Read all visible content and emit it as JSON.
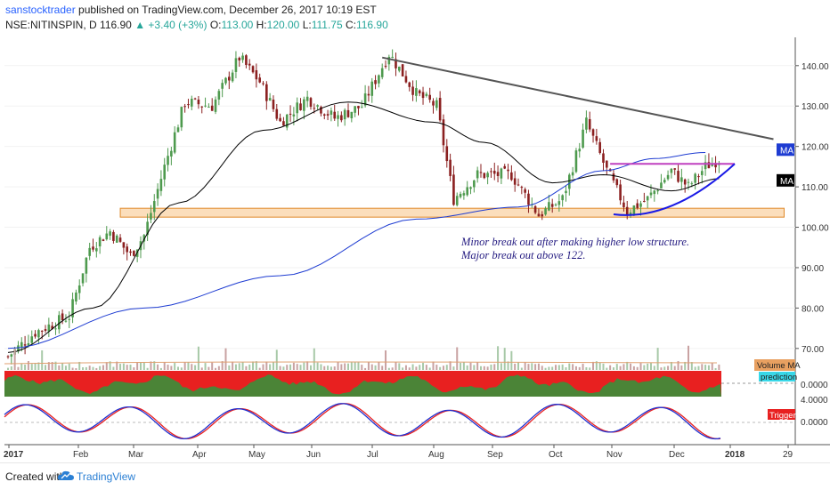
{
  "header": {
    "author": "sanstocktrader",
    "published": "published on TradingView.com, December 26, 2017 10:19 EST",
    "symbol": "NSE:NITINSPIN, D",
    "last": "116.90",
    "change": "+3.40 (+3%)",
    "open_label": "O:",
    "open": "113.00",
    "high_label": "H:",
    "high": "120.00",
    "low_label": "L:",
    "low": "111.75",
    "close_label": "C:",
    "close": "116.90",
    "up_arrow": "▲"
  },
  "footer": {
    "created_with": "Created with",
    "brand": "TradingView",
    "brand_icon": "tradingview-cloud-icon"
  },
  "colors": {
    "up": "#4e9a4e",
    "down": "#8b2020",
    "ma_black": "#000000",
    "ma_blue": "#1e3cd2",
    "trendline": "#555555",
    "support_zone": "#f9d3a6",
    "support_zone_border": "#e08a2a",
    "resistance": "#c040c0",
    "cup": "#1a1ae6",
    "annotation": "#231a80",
    "osc_red": "#e82020",
    "osc_green": "#3a8f3a",
    "stoch_red": "#e82020",
    "stoch_blue": "#2030d0"
  },
  "chart_data": {
    "type": "candlestick",
    "ylim": [
      66,
      147
    ],
    "price_ticks": [
      70,
      80,
      90,
      100,
      110,
      120,
      130,
      140
    ],
    "price_tick_labels": [
      "70.00",
      "80.00",
      "90.00",
      "100.00",
      "110.00",
      "120.00",
      "130.00",
      "140.00"
    ],
    "x_ticks": [
      "2017",
      "Feb",
      "Mar",
      "Apr",
      "May",
      "Jun",
      "Jul",
      "Aug",
      "Sep",
      "Oct",
      "Nov",
      "Dec",
      "2018",
      "29"
    ],
    "price_path": [
      [
        0,
        68
      ],
      [
        8,
        74
      ],
      [
        18,
        78
      ],
      [
        24,
        95
      ],
      [
        30,
        99
      ],
      [
        36,
        93
      ],
      [
        40,
        98
      ],
      [
        46,
        115
      ],
      [
        52,
        131
      ],
      [
        60,
        130
      ],
      [
        68,
        142
      ],
      [
        74,
        136
      ],
      [
        80,
        126
      ],
      [
        88,
        132
      ],
      [
        96,
        127
      ],
      [
        104,
        130
      ],
      [
        112,
        143
      ],
      [
        120,
        133
      ],
      [
        126,
        130
      ],
      [
        131,
        107
      ],
      [
        138,
        113
      ],
      [
        148,
        113
      ],
      [
        156,
        103
      ],
      [
        163,
        107
      ],
      [
        170,
        126
      ],
      [
        176,
        114
      ],
      [
        182,
        104
      ],
      [
        188,
        107
      ],
      [
        195,
        114
      ],
      [
        200,
        110
      ],
      [
        205,
        115
      ],
      [
        209,
        116.9
      ]
    ],
    "ma_black": [
      [
        0,
        69
      ],
      [
        25,
        80
      ],
      [
        50,
        106
      ],
      [
        75,
        124
      ],
      [
        100,
        131
      ],
      [
        125,
        126
      ],
      [
        140,
        121
      ],
      [
        160,
        111
      ],
      [
        175,
        113
      ],
      [
        195,
        109
      ],
      [
        209,
        112
      ]
    ],
    "ma_blue": [
      [
        0,
        70
      ],
      [
        40,
        80
      ],
      [
        80,
        88
      ],
      [
        120,
        102
      ],
      [
        150,
        105
      ],
      [
        175,
        114
      ],
      [
        190,
        117
      ],
      [
        205,
        118.5
      ]
    ],
    "trendline": [
      [
        110,
        142
      ],
      [
        225,
        121.8
      ]
    ],
    "support_zone": {
      "x_from": 33,
      "x_to": 225,
      "y_low": 102.5,
      "y_high": 104.7
    },
    "resistance_line": {
      "x_from": 177,
      "x_to": 211,
      "y": 115.7
    },
    "cup_curve": [
      [
        178,
        103.2
      ],
      [
        195,
        103.6
      ],
      [
        211,
        115.7
      ]
    ],
    "markers": [
      {
        "label": "MA",
        "y": 119.2,
        "bg": "#1e3cd2",
        "fg": "#ffffff"
      },
      {
        "label": "MA",
        "y": 111.6,
        "bg": "#000000",
        "fg": "#ffffff"
      }
    ],
    "annotation": [
      "Minor break out after making higher low structure.",
      "Major break out above 122."
    ],
    "volume_labels": [
      "Volume MA"
    ],
    "osc_labels": [
      "prediction"
    ],
    "osc_value": "0.0000",
    "stoch_labels": [
      "Trigger"
    ],
    "stoch_values": [
      "4.0000",
      "0.0000"
    ]
  }
}
